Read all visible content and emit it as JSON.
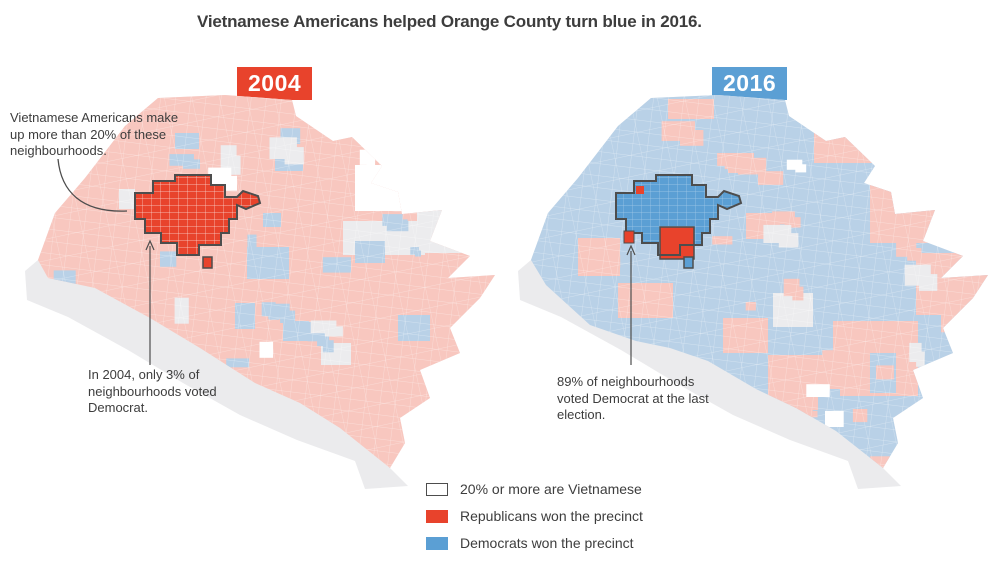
{
  "title": "Vietnamese Americans helped Orange County turn blue in 2016.",
  "colors": {
    "republican": "#e8432c",
    "democrat": "#5b9fd4",
    "republican_light": "#f8c7bf",
    "democrat_light": "#b9d1e7",
    "no_data": "#ececee",
    "coast": "#ebebed",
    "outline": "#4d4d4d",
    "text": "#3d3d3d",
    "background": "#ffffff"
  },
  "maps": {
    "m2004": {
      "year_label": "2004",
      "annotations": {
        "vietnamese": "Vietnamese Americans make up more than 20% of these neighbourhoods.",
        "stat": "In 2004, only 3% of neighbourhoods voted Democrat."
      }
    },
    "m2016": {
      "year_label": "2016",
      "annotations": {
        "stat": "89% of neighbourhoods voted Democrat at the last election."
      }
    }
  },
  "legend": {
    "items": [
      {
        "key": "vietnamese",
        "label": "20% or more are Vietnamese"
      },
      {
        "key": "republican",
        "label": "Republicans won the precinct"
      },
      {
        "key": "democrat",
        "label": "Democrats won the precinct"
      }
    ]
  }
}
